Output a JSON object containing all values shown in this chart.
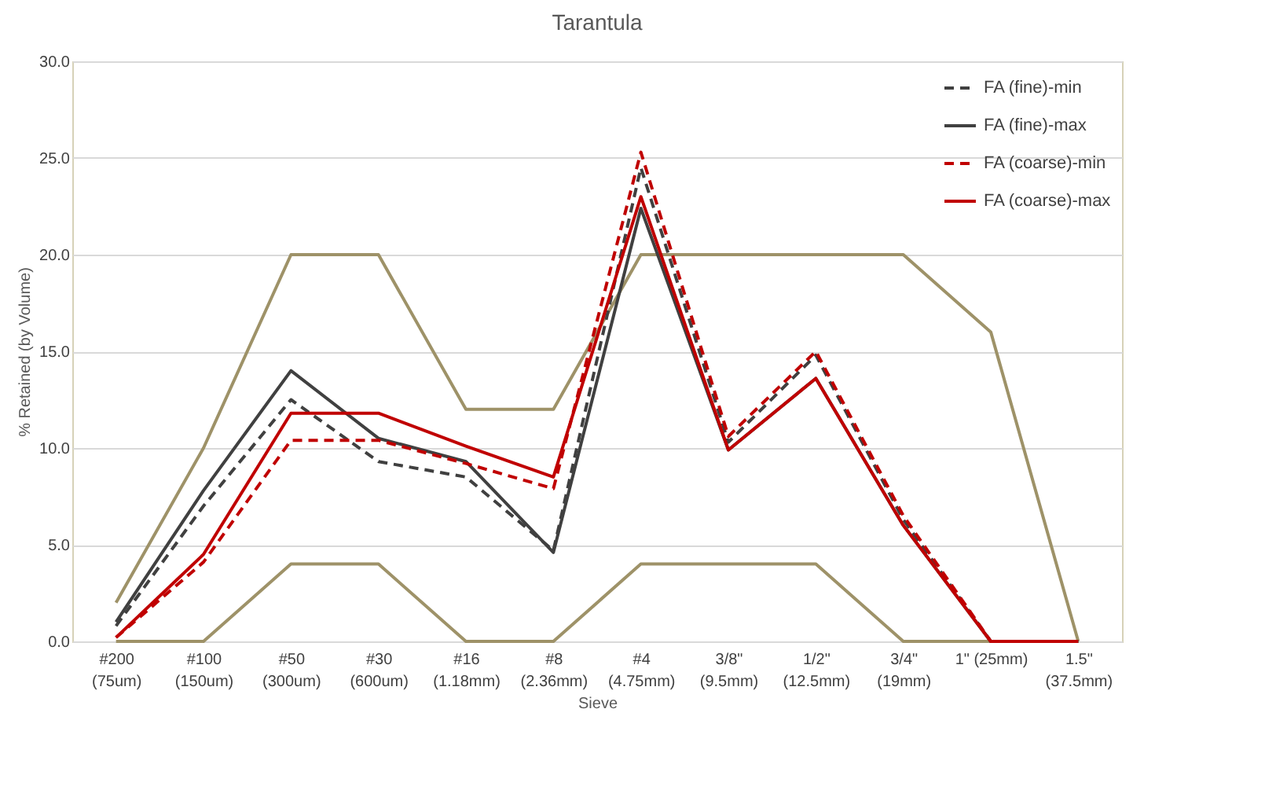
{
  "chart_data": {
    "type": "line",
    "title": "Tarantula",
    "xlabel": "Sieve",
    "ylabel": "% Retained (by Volume)",
    "categories": [
      "#200\n(75um)",
      "#100\n(150um)",
      "#50\n(300um)",
      "#30\n(600um)",
      "#16\n(1.18mm)",
      "#8\n(2.36mm)",
      "#4\n(4.75mm)",
      "3/8\"\n(9.5mm)",
      "1/2\"\n(12.5mm)",
      "3/4\"\n(19mm)",
      "1\" (25mm)",
      "1.5\"\n(37.5mm)"
    ],
    "series": [
      {
        "name": "FA (fine)-min",
        "color": "#404040",
        "line_style": "dashed",
        "values": [
          0.8,
          7.0,
          12.5,
          9.3,
          8.5,
          4.7,
          24.5,
          10.3,
          14.8,
          6.3,
          0,
          0
        ]
      },
      {
        "name": "FA (fine)-max",
        "color": "#404040",
        "line_style": "solid",
        "values": [
          1.0,
          7.8,
          14.0,
          10.5,
          9.3,
          4.6,
          22.4,
          9.9,
          13.6,
          6.0,
          0,
          0
        ]
      },
      {
        "name": "FA (coarse)-min",
        "color": "#c00000",
        "line_style": "dashed",
        "values": [
          0.2,
          4.1,
          10.4,
          10.4,
          9.2,
          7.9,
          25.3,
          10.6,
          15.0,
          6.5,
          0,
          0
        ]
      },
      {
        "name": "FA (coarse)-max",
        "color": "#c00000",
        "line_style": "solid",
        "values": [
          0.2,
          4.5,
          11.8,
          11.8,
          10.1,
          8.5,
          23.0,
          9.9,
          13.6,
          6.0,
          0,
          0
        ]
      },
      {
        "color": "#9e9268",
        "line_style": "solid",
        "values": [
          2,
          10,
          20,
          20,
          12,
          12,
          20,
          20,
          20,
          20,
          16,
          0
        ]
      },
      {
        "color": "#9e9268",
        "line_style": "solid",
        "values": [
          0,
          0,
          4,
          4,
          0,
          0,
          4,
          4,
          4,
          0,
          0,
          0
        ]
      }
    ],
    "ylim": [
      0,
      30
    ],
    "yticks": [
      {
        "value": 0,
        "label": "0.0"
      },
      {
        "value": 5,
        "label": "5.0"
      },
      {
        "value": 10,
        "label": "10.0"
      },
      {
        "value": 15,
        "label": "15.0"
      },
      {
        "value": 20,
        "label": "20.0"
      },
      {
        "value": 25,
        "label": "25.0"
      },
      {
        "value": 30,
        "label": "30.0"
      }
    ],
    "grid": "y",
    "legend": "top right"
  }
}
